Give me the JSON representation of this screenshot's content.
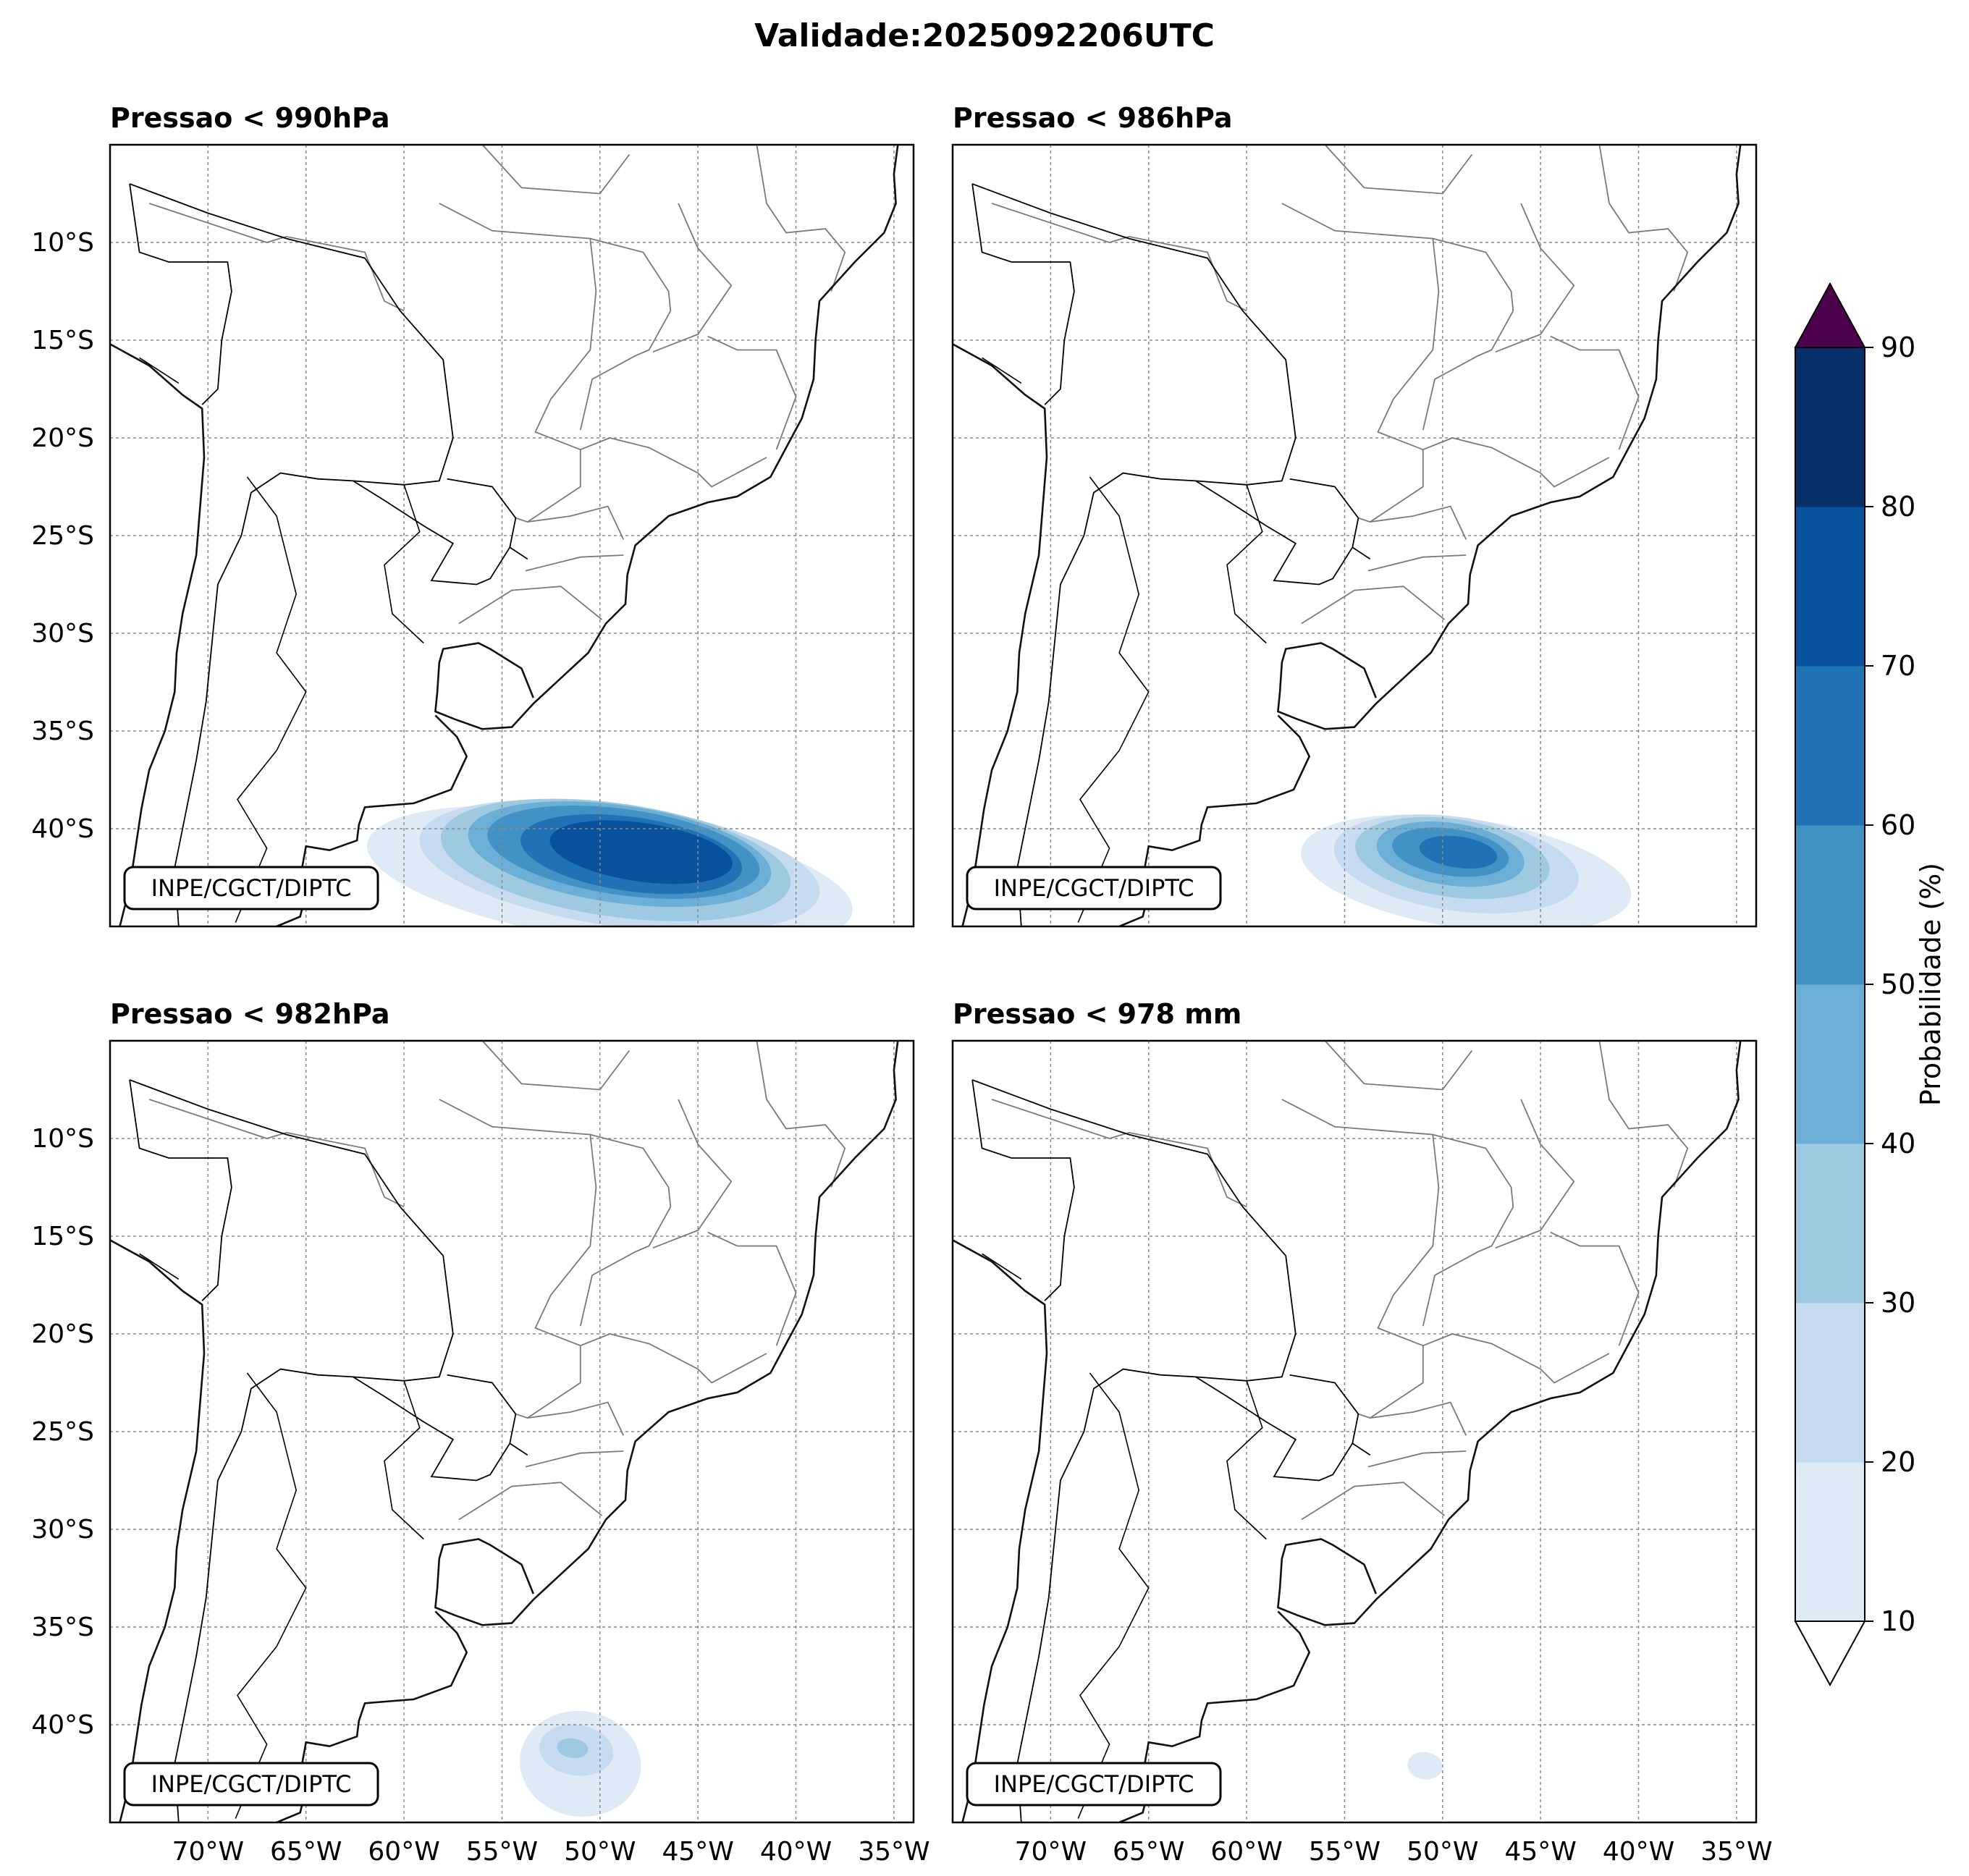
{
  "chart_data": {
    "type": "heatmap",
    "title": "Validade:2025092206UTC",
    "x_ticks": [
      "70°W",
      "65°W",
      "60°W",
      "55°W",
      "50°W",
      "45°W",
      "40°W",
      "35°W"
    ],
    "y_ticks": [
      "10°S",
      "15°S",
      "20°S",
      "25°S",
      "30°S",
      "35°S",
      "40°S"
    ],
    "lon_range": [
      -75,
      -34
    ],
    "lat_range": [
      -45,
      -5
    ],
    "credit": "INPE/CGCT/DIPTC",
    "colorbar": {
      "label": "Probabilidade (%)",
      "levels": [
        10,
        20,
        30,
        40,
        50,
        60,
        70,
        80,
        90
      ],
      "colors": [
        "#deebf7",
        "#c6dbef",
        "#9ecae1",
        "#6baed6",
        "#4292c6",
        "#2171b5",
        "#08519c",
        "#08306b"
      ],
      "over_color": "#4d004b",
      "extend": "both"
    },
    "panels": [
      {
        "title": "Pressao < 990hPa",
        "max_probability": 75,
        "blobs": [
          {
            "level": 10,
            "lon": -49.5,
            "lat": -42.5,
            "rlon": 12.5,
            "rlat": 3.3
          },
          {
            "level": 20,
            "lon": -49.0,
            "lat": -41.9,
            "rlon": 10.3,
            "rlat": 3.1
          },
          {
            "level": 30,
            "lon": -49.2,
            "lat": -41.6,
            "rlon": 9.0,
            "rlat": 2.9
          },
          {
            "level": 40,
            "lon": -49.0,
            "lat": -41.3,
            "rlon": 7.8,
            "rlat": 2.5
          },
          {
            "level": 50,
            "lon": -48.8,
            "lat": -41.2,
            "rlon": 7.0,
            "rlat": 2.2
          },
          {
            "level": 60,
            "lon": -48.4,
            "lat": -41.3,
            "rlon": 5.7,
            "rlat": 1.9
          },
          {
            "level": 70,
            "lon": -47.9,
            "lat": -41.2,
            "rlon": 4.7,
            "rlat": 1.5
          }
        ]
      },
      {
        "title": "Pressao < 986hPa",
        "max_probability": 65,
        "blobs": [
          {
            "level": 10,
            "lon": -48.8,
            "lat": -42.3,
            "rlon": 8.5,
            "rlat": 2.8
          },
          {
            "level": 20,
            "lon": -49.3,
            "lat": -41.8,
            "rlon": 6.3,
            "rlat": 2.4
          },
          {
            "level": 30,
            "lon": -49.5,
            "lat": -41.5,
            "rlon": 5.0,
            "rlat": 2.0
          },
          {
            "level": 40,
            "lon": -49.6,
            "lat": -41.3,
            "rlon": 3.8,
            "rlat": 1.6
          },
          {
            "level": 50,
            "lon": -49.6,
            "lat": -41.2,
            "rlon": 3.0,
            "rlat": 1.2
          },
          {
            "level": 60,
            "lon": -49.2,
            "lat": -41.2,
            "rlon": 2.0,
            "rlat": 0.8
          }
        ]
      },
      {
        "title": "Pressao < 982hPa",
        "max_probability": 35,
        "blobs": [
          {
            "level": 10,
            "lon": -51.0,
            "lat": -42.0,
            "rlon": 3.1,
            "rlat": 2.7
          },
          {
            "level": 20,
            "lon": -51.2,
            "lat": -41.3,
            "rlon": 1.9,
            "rlat": 1.3
          },
          {
            "level": 30,
            "lon": -51.4,
            "lat": -41.2,
            "rlon": 0.8,
            "rlat": 0.5
          }
        ]
      },
      {
        "title": "Pressao < 978 mm",
        "max_probability": 15,
        "blobs": [
          {
            "level": 10,
            "lon": -50.9,
            "lat": -42.1,
            "rlon": 0.9,
            "rlat": 0.7
          }
        ]
      }
    ]
  }
}
